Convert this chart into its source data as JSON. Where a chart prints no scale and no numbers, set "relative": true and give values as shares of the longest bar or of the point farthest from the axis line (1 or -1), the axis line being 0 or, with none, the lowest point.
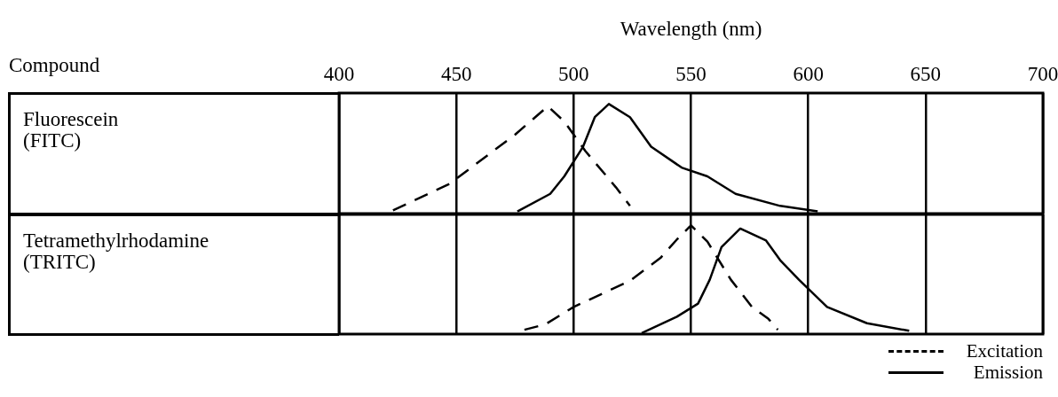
{
  "chart_data": [
    {
      "type": "line",
      "ylabel": "Fluorescein (FITC)",
      "xlabel": "Wavelength (nm)",
      "annotations": [
        "Compound"
      ],
      "relative": true,
      "xlim": [
        400,
        700
      ],
      "xticks": [
        400,
        450,
        500,
        550,
        600,
        650,
        700
      ],
      "grid": "x",
      "legend": false,
      "tick_labels": "x",
      "marker": "none",
      "series": [
        {
          "color": "#000000",
          "line_style": "dashed",
          "x": [
            423,
            447,
            475,
            489,
            496,
            505,
            518,
            524
          ],
          "values": [
            0.03,
            0.27,
            0.72,
            0.98,
            0.84,
            0.57,
            0.24,
            0.07
          ]
        },
        {
          "color": "#000000",
          "line_style": "solid",
          "x": [
            476,
            490,
            496,
            504,
            509,
            515,
            524,
            533,
            546,
            557,
            569,
            588,
            604
          ],
          "values": [
            0.02,
            0.18,
            0.34,
            0.61,
            0.88,
            1.0,
            0.88,
            0.61,
            0.42,
            0.34,
            0.18,
            0.07,
            0.02
          ]
        }
      ]
    },
    {
      "type": "line",
      "ylabel": "Tetramethylrhodamine (TRITC)",
      "relative": true,
      "xlim": [
        400,
        700
      ],
      "xticks": [
        400,
        450,
        500,
        550,
        600,
        650,
        700
      ],
      "grid": "x",
      "legend": "bottom right",
      "tick_labels": false,
      "marker": "none",
      "series": [
        {
          "name": "Excitation",
          "color": "#000000",
          "line_style": "dashed",
          "x": [
            479,
            488,
            500,
            524,
            537,
            544,
            550,
            557,
            567,
            576,
            583,
            587
          ],
          "values": [
            0.04,
            0.09,
            0.25,
            0.49,
            0.7,
            0.87,
            1.0,
            0.85,
            0.5,
            0.25,
            0.14,
            0.04
          ]
        },
        {
          "name": "Emission",
          "color": "#000000",
          "line_style": "solid",
          "x": [
            529,
            544,
            553,
            558,
            563,
            571,
            582,
            588,
            596,
            608,
            625,
            643
          ],
          "values": [
            0.01,
            0.16,
            0.28,
            0.5,
            0.8,
            0.97,
            0.86,
            0.68,
            0.5,
            0.25,
            0.1,
            0.03
          ]
        }
      ]
    }
  ]
}
